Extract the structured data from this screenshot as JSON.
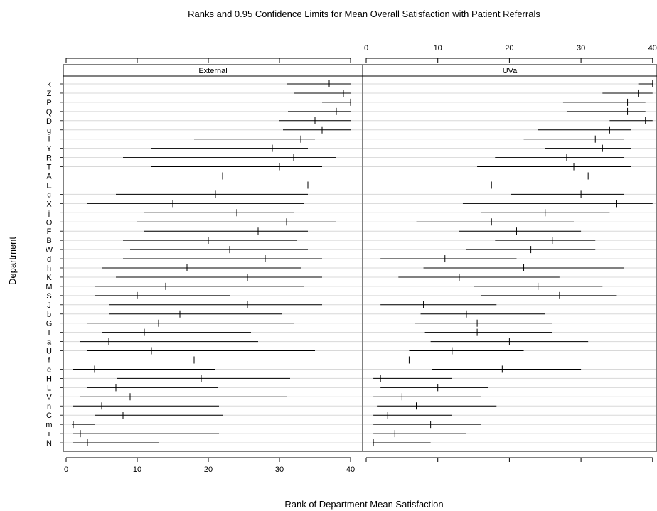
{
  "chart_data": {
    "type": "dot-interval",
    "title": "Ranks and 0.95 Confidence Limits for Mean Overall Satisfaction with Patient Referrals",
    "xlabel": "Rank of Department Mean Satisfaction",
    "ylabel": "Department",
    "xlim": [
      0,
      40
    ],
    "xticks": [
      0,
      10,
      20,
      30,
      40
    ],
    "panels": [
      "External",
      "UVa"
    ],
    "grid": true,
    "departments": [
      "k",
      "Z",
      "P",
      "Q",
      "D",
      "g",
      "I",
      "Y",
      "R",
      "T",
      "A",
      "E",
      "c",
      "X",
      "j",
      "O",
      "F",
      "B",
      "W",
      "d",
      "h",
      "K",
      "M",
      "S",
      "J",
      "b",
      "G",
      "I",
      "a",
      "U",
      "f",
      "e",
      "H",
      "L",
      "V",
      "n",
      "C",
      "m",
      "i",
      "N"
    ],
    "series": [
      {
        "name": "External",
        "rank": [
          37,
          39,
          40,
          38,
          35,
          36,
          33,
          29,
          32,
          30,
          22,
          34,
          21,
          15,
          24,
          31,
          27,
          20,
          23,
          28,
          17,
          25.5,
          14,
          10,
          25.5,
          16,
          13,
          11,
          6,
          12,
          18,
          4,
          19,
          7,
          9,
          5,
          8,
          1,
          2,
          3
        ],
        "lower": [
          31,
          32,
          36,
          31.2,
          30,
          30.5,
          18,
          12,
          8,
          12,
          8,
          14,
          7,
          3,
          11,
          10,
          11,
          8,
          9,
          8,
          5,
          7,
          4,
          4,
          6,
          6,
          3,
          5,
          2,
          3,
          3,
          1,
          7.2,
          3,
          2,
          1,
          4,
          0.8,
          1,
          1
        ],
        "upper": [
          40,
          40,
          40,
          40,
          40,
          40,
          35,
          34,
          38,
          36,
          33,
          39,
          34,
          33.5,
          32,
          38,
          34,
          32.5,
          34,
          36,
          33,
          36,
          33.5,
          23,
          36,
          30.3,
          32,
          26,
          27,
          35,
          37.9,
          21,
          31.5,
          21.3,
          31,
          21.5,
          22,
          4,
          21.5,
          13
        ]
      },
      {
        "name": "UVa",
        "rank": [
          40,
          38,
          36.5,
          36.5,
          39,
          34,
          32,
          33,
          28,
          29,
          31,
          17.5,
          30,
          35,
          25,
          17.5,
          21,
          26,
          23,
          11,
          22,
          13,
          24,
          27,
          8,
          14,
          15.5,
          15.5,
          20,
          12,
          6,
          19,
          2,
          10,
          5,
          7,
          3,
          9,
          4,
          1
        ],
        "lower": [
          38,
          33,
          27.5,
          28,
          34,
          24,
          22,
          25,
          18,
          15.5,
          20,
          6,
          20.2,
          13.5,
          16,
          7,
          13,
          18,
          14,
          2,
          8,
          4.5,
          15,
          16,
          2,
          7.6,
          6.8,
          8.2,
          9,
          6,
          1,
          9.2,
          1,
          2,
          1,
          1.5,
          1,
          1,
          1,
          1
        ],
        "upper": [
          40,
          40,
          39,
          39,
          40,
          37,
          36,
          37,
          36,
          37,
          37,
          33,
          36,
          40,
          34,
          29,
          30,
          32,
          32,
          21,
          36,
          27,
          33,
          35,
          18.2,
          25,
          26,
          26,
          31,
          22,
          33,
          30,
          12,
          17,
          16,
          18.2,
          12,
          16,
          14,
          9
        ]
      }
    ]
  }
}
